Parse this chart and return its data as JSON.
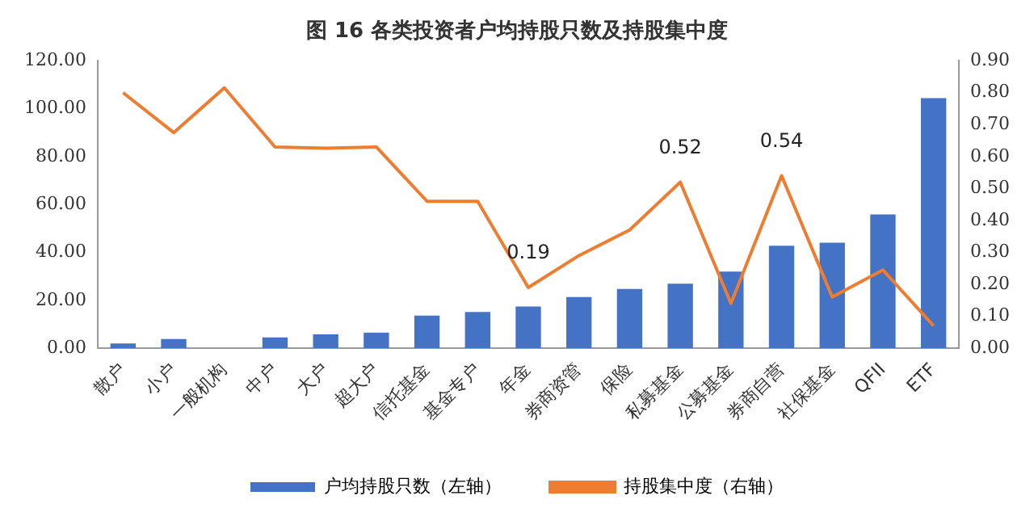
{
  "chart_data": {
    "type": "bar",
    "title": "图 16 各类投资者户均持股只数及持股集中度",
    "categories": [
      "散户",
      "小户",
      "一般机构",
      "中户",
      "大户",
      "超大户",
      "信托基金",
      "基金专户",
      "年金",
      "券商资管",
      "保险",
      "私募基金",
      "公募基金",
      "券商自营",
      "社保基金",
      "QFII",
      "ETF"
    ],
    "series": [
      {
        "name": "户均持股只数（左轴）",
        "color": "#4472c4",
        "values": [
          2,
          3.8,
          0,
          4.5,
          5.8,
          6.5,
          13.6,
          15.1,
          17.4,
          21.4,
          24.7,
          26.9,
          32,
          42.8,
          44,
          55.8,
          104.4
        ]
      },
      {
        "name": "持股集中度（右轴）",
        "type": "line",
        "axis": "y2",
        "color": "#ed7d31",
        "values": [
          0.8,
          0.675,
          0.815,
          0.63,
          0.626,
          0.63,
          0.46,
          0.46,
          0.19,
          0.29,
          0.37,
          0.52,
          0.14,
          0.54,
          0.16,
          0.245,
          0.07
        ],
        "value_labels": [
          null,
          null,
          null,
          null,
          null,
          null,
          null,
          null,
          "0.19",
          null,
          null,
          "0.52",
          null,
          "0.54",
          null,
          null,
          null
        ]
      }
    ],
    "ylim": [
      0,
      120
    ],
    "yticks": [
      {
        "value": 0,
        "label": "0.00"
      },
      {
        "value": 20,
        "label": "20.00"
      },
      {
        "value": 40,
        "label": "40.00"
      },
      {
        "value": 60,
        "label": "60.00"
      },
      {
        "value": 80,
        "label": "80.00"
      },
      {
        "value": 100,
        "label": "100.00"
      },
      {
        "value": 120,
        "label": "120.00"
      }
    ],
    "y2lim": [
      0,
      0.9
    ],
    "y2ticks": [
      {
        "value": 0,
        "label": "0.00"
      },
      {
        "value": 0.1,
        "label": "0.10"
      },
      {
        "value": 0.2,
        "label": "0.20"
      },
      {
        "value": 0.3,
        "label": "0.30"
      },
      {
        "value": 0.4,
        "label": "0.40"
      },
      {
        "value": 0.5,
        "label": "0.50"
      },
      {
        "value": 0.6,
        "label": "0.60"
      },
      {
        "value": 0.7,
        "label": "0.70"
      },
      {
        "value": 0.8,
        "label": "0.80"
      },
      {
        "value": 0.9,
        "label": "0.90"
      }
    ],
    "grid": false,
    "legend": "bottom",
    "marker": "none"
  }
}
